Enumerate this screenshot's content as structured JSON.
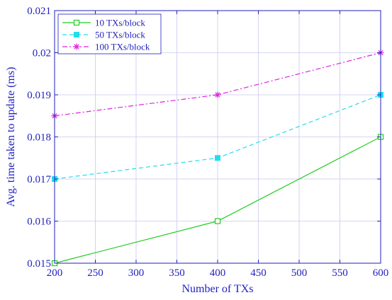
{
  "chart_data": {
    "type": "line",
    "xlabel": "Number of TXs",
    "ylabel": "Avg. time taken to update (ms)",
    "xlim": [
      200,
      600
    ],
    "ylim": [
      0.015,
      0.021
    ],
    "xticks": [
      200,
      250,
      300,
      350,
      400,
      450,
      500,
      550,
      600
    ],
    "yticks": [
      0.015,
      0.016,
      0.017,
      0.018,
      0.019,
      0.02,
      0.021
    ],
    "xtick_labels": [
      "200",
      "250",
      "300",
      "350",
      "400",
      "450",
      "500",
      "550",
      "600"
    ],
    "ytick_labels": [
      "0.015",
      "0.016",
      "0.017",
      "0.018",
      "0.019",
      "0.02",
      "0.021"
    ],
    "grid": true,
    "legend_position": "top-left",
    "x": [
      200,
      400,
      600
    ],
    "series": [
      {
        "name": "10 TXs/block",
        "values": [
          0.015,
          0.016,
          0.018
        ],
        "color": "#22cc22",
        "dash": "solid",
        "marker": "square-open"
      },
      {
        "name": "50 TXs/block",
        "values": [
          0.017,
          0.0175,
          0.019
        ],
        "color": "#22ddee",
        "dash": "dashed",
        "marker": "square-filled"
      },
      {
        "name": "100 TXs/block",
        "values": [
          0.0185,
          0.019,
          0.02
        ],
        "color": "#dd22dd",
        "dash": "dashdot",
        "marker": "asterisk"
      }
    ]
  }
}
